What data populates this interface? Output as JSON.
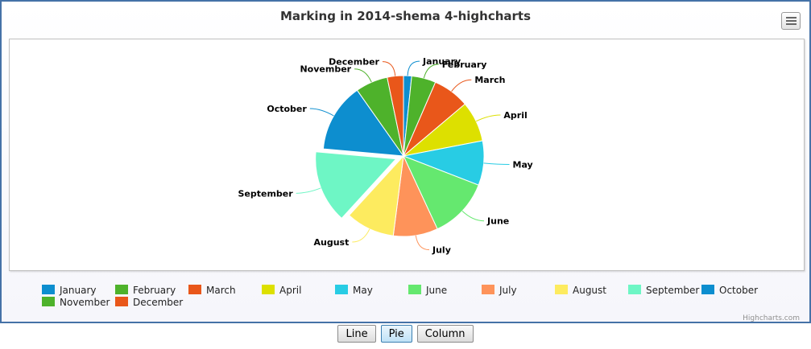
{
  "chart_data": {
    "type": "pie",
    "title": "Marking in 2014-shema 4-highcharts",
    "categories": [
      "January",
      "February",
      "March",
      "April",
      "May",
      "June",
      "July",
      "August",
      "September",
      "October",
      "November",
      "December"
    ],
    "values": [
      2,
      6,
      9,
      10,
      11,
      15,
      11,
      12,
      18,
      17,
      8,
      4
    ],
    "colors": [
      "#0d8ecf",
      "#4eb22b",
      "#e9571a",
      "#dde000",
      "#28cce4",
      "#65e86f",
      "#fe935a",
      "#fdeb5f",
      "#6ef6c5",
      "#0d8ecf",
      "#4eb22b",
      "#e9571a"
    ],
    "sliced": [
      "September"
    ],
    "legend_position": "bottom"
  },
  "credits": "Highcharts.com",
  "menu_icon": "hamburger-menu-icon",
  "buttons": {
    "line": "Line",
    "pie": "Pie",
    "column": "Column"
  }
}
